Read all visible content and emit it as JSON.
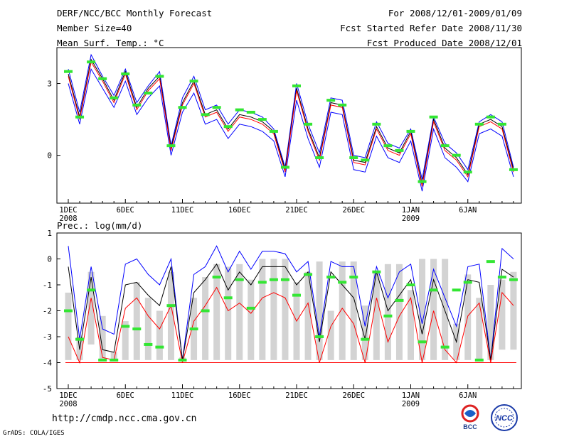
{
  "header": {
    "title": "DERF/NCC/BCC Monthly Forecast",
    "member_size": "Member Size=40",
    "variable": "Mean Surf. Temp.: °C",
    "period": "For 2008/12/01-2009/01/09",
    "started": "Fcst Started Refer Date 2008/11/30",
    "produced": "Fcst Produced Date 2008/12/01"
  },
  "footer": {
    "url": "http://cmdp.ncc.cma.gov.cn",
    "credit": "GrADS: COLA/IGES",
    "logo_bcc_text": "BCC",
    "logo_ncc_text": "NCC"
  },
  "colors": {
    "obs_marker": "#33e633",
    "spread_bar": "#d3d3d3",
    "upper": "#0000ff",
    "mean": "#000000",
    "lower": "#ff0000"
  },
  "chart_data": [
    {
      "type": "line",
      "title": "Mean Surf. Temp.: °C",
      "x_day_labels": [
        "1DEC",
        "6DEC",
        "11DEC",
        "16DEC",
        "21DEC",
        "26DEC",
        "1JAN",
        "6JAN"
      ],
      "x_year_labels": [
        "2008",
        "",
        "",
        "",
        "",
        "",
        "2009",
        ""
      ],
      "x_days": [
        1,
        2,
        3,
        4,
        5,
        6,
        7,
        8,
        9,
        10,
        11,
        12,
        13,
        14,
        15,
        16,
        17,
        18,
        19,
        20,
        21,
        22,
        23,
        24,
        25,
        26,
        27,
        28,
        29,
        30,
        31,
        32,
        33,
        34,
        35,
        36,
        37,
        38,
        39,
        40
      ],
      "ylim": [
        -2.0,
        4.5
      ],
      "yticks": [
        0,
        3
      ],
      "series": [
        {
          "name": "upper",
          "color": "#0000ff",
          "values": [
            3.6,
            1.8,
            4.2,
            3.3,
            2.5,
            3.6,
            2.2,
            2.9,
            3.5,
            0.4,
            2.4,
            3.3,
            1.9,
            2.1,
            1.3,
            1.9,
            1.8,
            1.6,
            1.1,
            -0.5,
            3.0,
            1.3,
            0.1,
            2.4,
            2.3,
            0.0,
            -0.1,
            1.4,
            0.5,
            0.3,
            1.1,
            -1.0,
            1.6,
            0.5,
            0.1,
            -0.6,
            1.4,
            1.7,
            1.4,
            -0.5
          ]
        },
        {
          "name": "mean",
          "color": "#000000",
          "values": [
            3.4,
            1.6,
            4.0,
            3.2,
            2.3,
            3.5,
            2.0,
            2.8,
            3.3,
            0.3,
            2.2,
            3.1,
            1.7,
            1.9,
            1.1,
            1.7,
            1.6,
            1.4,
            1.0,
            -0.6,
            2.8,
            1.1,
            -0.1,
            2.2,
            2.1,
            -0.2,
            -0.3,
            1.2,
            0.3,
            0.1,
            1.0,
            -1.2,
            1.5,
            0.3,
            -0.1,
            -0.8,
            1.3,
            1.5,
            1.2,
            -0.6
          ]
        },
        {
          "name": "ensemble",
          "color": "#ff0000",
          "values": [
            3.3,
            1.5,
            3.9,
            3.1,
            2.2,
            3.4,
            1.9,
            2.7,
            3.2,
            0.2,
            2.1,
            3.0,
            1.6,
            1.8,
            1.0,
            1.6,
            1.5,
            1.3,
            0.9,
            -0.7,
            2.7,
            1.0,
            -0.2,
            2.1,
            2.0,
            -0.3,
            -0.4,
            1.1,
            0.2,
            0.0,
            0.9,
            -1.3,
            1.4,
            0.2,
            -0.2,
            -0.9,
            1.2,
            1.4,
            1.1,
            -0.7
          ]
        },
        {
          "name": "lower",
          "color": "#0000ff",
          "values": [
            3.0,
            1.3,
            3.6,
            2.8,
            2.0,
            3.1,
            1.7,
            2.4,
            2.9,
            0.0,
            1.8,
            2.6,
            1.3,
            1.5,
            0.7,
            1.3,
            1.2,
            1.0,
            0.6,
            -0.9,
            2.3,
            0.7,
            -0.5,
            1.8,
            1.7,
            -0.6,
            -0.7,
            0.8,
            -0.1,
            -0.3,
            0.6,
            -1.5,
            1.1,
            -0.1,
            -0.5,
            -1.1,
            0.9,
            1.1,
            0.8,
            -0.9
          ]
        },
        {
          "name": "obs",
          "color": "#33e633",
          "values": [
            3.5,
            1.6,
            3.9,
            3.2,
            2.4,
            3.4,
            2.1,
            2.6,
            3.3,
            0.4,
            2.0,
            3.1,
            1.7,
            2.0,
            1.2,
            1.9,
            1.8,
            1.5,
            1.0,
            -0.5,
            2.9,
            1.3,
            -0.1,
            2.3,
            2.1,
            -0.1,
            -0.2,
            1.3,
            0.4,
            0.2,
            1.0,
            -1.1,
            1.6,
            0.4,
            0.0,
            -0.7,
            1.3,
            1.6,
            1.3,
            -0.6
          ]
        }
      ]
    },
    {
      "type": "line",
      "title": "Prec.: log(mm/d)",
      "x_day_labels": [
        "1DEC",
        "6DEC",
        "11DEC",
        "16DEC",
        "21DEC",
        "26DEC",
        "1JAN",
        "6JAN"
      ],
      "x_year_labels": [
        "2008",
        "",
        "",
        "",
        "",
        "",
        "2009",
        ""
      ],
      "x_days": [
        1,
        2,
        3,
        4,
        5,
        6,
        7,
        8,
        9,
        10,
        11,
        12,
        13,
        14,
        15,
        16,
        17,
        18,
        19,
        20,
        21,
        22,
        23,
        24,
        25,
        26,
        27,
        28,
        29,
        30,
        31,
        32,
        33,
        34,
        35,
        36,
        37,
        38,
        39,
        40
      ],
      "ylim": [
        -5,
        1
      ],
      "yticks": [
        -5,
        -4,
        -3,
        -2,
        -1,
        0,
        1
      ],
      "spread_top": [
        -1.3,
        -3.0,
        -0.5,
        -2.2,
        -3.6,
        -2.4,
        -0.9,
        -1.5,
        -2.0,
        -0.5,
        -3.8,
        -1.5,
        -0.7,
        -0.2,
        -0.3,
        -0.2,
        -0.8,
        0.0,
        0.0,
        0.0,
        -0.9,
        -0.5,
        -0.1,
        -2.0,
        -0.1,
        -0.1,
        -1.8,
        -0.5,
        -0.2,
        -0.2,
        -1.2,
        0.0,
        0.0,
        0.0,
        -2.5,
        -0.6,
        -1.5,
        -1.0,
        -0.8,
        -0.5
      ],
      "spread_bottom": [
        -3.9,
        -3.9,
        -3.3,
        -3.9,
        -3.9,
        -3.9,
        -3.9,
        -3.9,
        -3.9,
        -3.9,
        -3.9,
        -3.9,
        -3.9,
        -3.9,
        -3.9,
        -3.9,
        -3.9,
        -3.9,
        -3.9,
        -3.9,
        -3.9,
        -3.9,
        -3.9,
        -3.9,
        -3.9,
        -3.9,
        -3.9,
        -3.9,
        -3.9,
        -3.9,
        -3.9,
        -3.9,
        -3.9,
        -3.9,
        -3.9,
        -3.9,
        -3.9,
        -3.9,
        -3.5,
        -3.5
      ],
      "series": [
        {
          "name": "upper",
          "color": "#0000ff",
          "values": [
            0.5,
            -3.1,
            -0.3,
            -2.7,
            -2.9,
            -0.2,
            0.0,
            -0.6,
            -1.0,
            0.0,
            -3.9,
            -0.6,
            -0.3,
            0.5,
            -0.5,
            0.3,
            -0.4,
            0.3,
            0.3,
            0.2,
            -0.5,
            -0.1,
            -3.0,
            -0.1,
            -0.3,
            -0.3,
            -2.6,
            -0.3,
            -1.5,
            -0.5,
            -0.2,
            -2.5,
            -0.4,
            -1.5,
            -2.6,
            -0.3,
            -0.2,
            -3.9,
            0.4,
            0.0
          ]
        },
        {
          "name": "mean",
          "color": "#000000",
          "values": [
            -0.3,
            -3.5,
            -0.7,
            -3.5,
            -3.6,
            -1.0,
            -0.9,
            -1.4,
            -1.8,
            -0.3,
            -3.9,
            -1.3,
            -0.8,
            -0.2,
            -1.2,
            -0.5,
            -1.0,
            -0.3,
            -0.3,
            -0.3,
            -1.0,
            -0.5,
            -3.2,
            -0.5,
            -1.0,
            -1.5,
            -3.1,
            -0.5,
            -2.0,
            -1.4,
            -0.8,
            -2.9,
            -0.8,
            -2.0,
            -3.2,
            -0.8,
            -0.9,
            -3.9,
            -0.4,
            -0.7
          ]
        },
        {
          "name": "lower",
          "color": "#ff0000",
          "values": [
            -3.0,
            -4.0,
            -1.5,
            -3.8,
            -3.9,
            -1.9,
            -1.5,
            -2.2,
            -2.7,
            -1.8,
            -4.0,
            -2.4,
            -1.8,
            -1.1,
            -2.0,
            -1.7,
            -2.1,
            -1.5,
            -1.3,
            -1.5,
            -2.4,
            -1.7,
            -4.0,
            -2.6,
            -1.9,
            -2.5,
            -4.0,
            -1.5,
            -3.2,
            -2.2,
            -1.5,
            -4.0,
            -2.0,
            -3.5,
            -4.0,
            -2.2,
            -1.7,
            -4.0,
            -1.3,
            -1.8
          ]
        },
        {
          "name": "obs",
          "color": "#33e633",
          "values": [
            -2.0,
            -3.1,
            -1.2,
            -3.9,
            -3.9,
            -2.6,
            -2.7,
            -3.3,
            -3.4,
            -1.8,
            -3.9,
            -2.7,
            -2.0,
            -0.7,
            -1.5,
            -0.8,
            -1.9,
            -0.9,
            -0.8,
            -0.8,
            -1.4,
            -0.6,
            -3.0,
            -0.7,
            -0.9,
            -0.7,
            -3.1,
            -0.5,
            -2.2,
            -1.6,
            -1.0,
            -3.2,
            -1.2,
            -3.4,
            -1.2,
            -0.9,
            -3.9,
            -0.1,
            -0.7,
            -0.8
          ]
        }
      ]
    }
  ]
}
